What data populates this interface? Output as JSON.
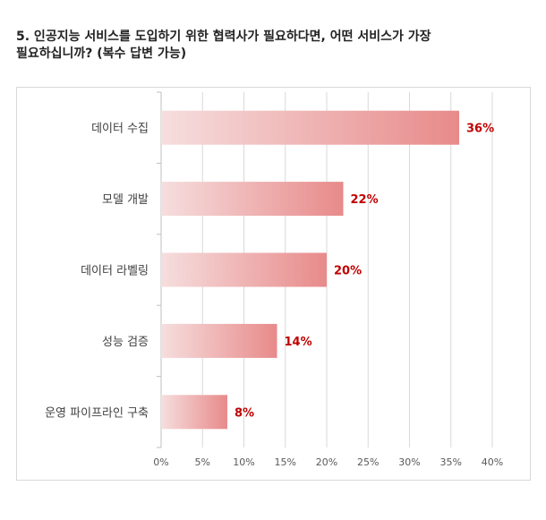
{
  "title_line1": "5. 인공지능 서비스를 도입하기 위한 협력사가 필요하다면, 어떤 서비스가 가장",
  "title_line2": "필요하십니까? (복수 답변 가능)",
  "chart_data": {
    "type": "bar",
    "orientation": "horizontal",
    "title": "5. 인공지능 서비스를 도입하기 위한 협력사가 필요하다면, 어떤 서비스가 가장 필요하십니까? (복수 답변 가능)",
    "categories": [
      "데이터 수집",
      "모델 개발",
      "데이터 라벨링",
      "성능 검증",
      "운영 파이프라인 구축"
    ],
    "values": [
      36,
      22,
      20,
      14,
      8
    ],
    "value_labels": [
      "36%",
      "22%",
      "20%",
      "14%",
      "8%"
    ],
    "xlim": [
      0,
      40
    ],
    "xticks": [
      0,
      5,
      10,
      15,
      20,
      25,
      30,
      35,
      40
    ],
    "xtick_labels": [
      "0%",
      "5%",
      "10%",
      "15%",
      "20%",
      "25%",
      "30%",
      "35%",
      "40%"
    ],
    "xlabel": "",
    "ylabel": "",
    "grid": "vertical",
    "legend": "none",
    "bar_gradient": [
      "#f6dede",
      "#e88a8a"
    ],
    "value_label_color": "#c00000",
    "grid_color": "#d9d9d9"
  }
}
